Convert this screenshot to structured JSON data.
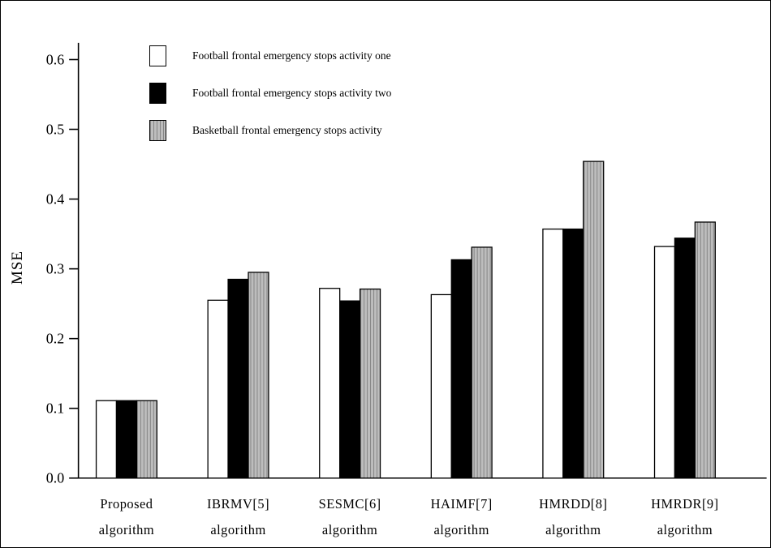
{
  "figure": {
    "ylabel": "MSE",
    "background": "#ffffff",
    "border_color": "#000000"
  },
  "chart_data": {
    "type": "bar",
    "title": "",
    "xlabel": "",
    "ylabel": "MSE",
    "ylim": [
      0,
      0.65
    ],
    "yticks": [
      0.0,
      0.1,
      0.2,
      0.3,
      0.4,
      0.5,
      0.6
    ],
    "grid": false,
    "legend_position": "top-left-inside",
    "categories": [
      "Proposed",
      "IBRMV[5]",
      "SESMC[6]",
      "HAIMF[7]",
      "HMRDD[8]",
      "HMRDR[9]"
    ],
    "category_suffix": "algorithm",
    "series": [
      {
        "name": "Football frontal emergency stops activity one",
        "style": "white",
        "values": [
          0.111,
          0.255,
          0.272,
          0.263,
          0.357,
          0.332
        ]
      },
      {
        "name": "Football frontal emergency stops activity two",
        "style": "black",
        "values": [
          0.111,
          0.285,
          0.254,
          0.313,
          0.357,
          0.344
        ]
      },
      {
        "name": "Basketball frontal emergency stops activity",
        "style": "gray-hatched",
        "values": [
          0.111,
          0.295,
          0.271,
          0.331,
          0.454,
          0.367
        ]
      }
    ],
    "colors": {
      "white_series": "#ffffff",
      "black_series": "#000000",
      "gray_series": "#bdbdbd",
      "gray_hatch_line": "#858585",
      "outline": "#000000",
      "axis": "#000000"
    }
  }
}
